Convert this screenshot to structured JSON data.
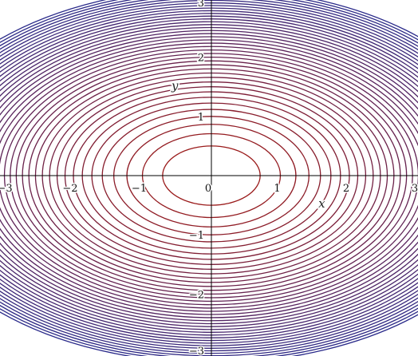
{
  "chart_data": {
    "type": "contour",
    "function": "x^2 + 2*y^2",
    "levels": {
      "start": 0.5,
      "step": 0.5,
      "count": 40
    },
    "colormap": {
      "inner": "#9a1a1a",
      "outer": "#2a2a8a"
    },
    "xlim": [
      -3,
      3
    ],
    "ylim": [
      -3,
      3
    ],
    "xticks": [
      -3,
      -2,
      -1,
      0,
      1,
      2,
      3
    ],
    "yticks": [
      -3,
      -2,
      -1,
      1,
      2,
      3
    ],
    "xtick_labels": [
      "−3",
      "−2",
      "−1",
      "0",
      "1",
      "2",
      "3"
    ],
    "ytick_labels": [
      "−3",
      "−2",
      "−1",
      "1",
      "2",
      "3"
    ],
    "xlabel": "x",
    "ylabel": "y",
    "grid": false,
    "legend": "none"
  }
}
